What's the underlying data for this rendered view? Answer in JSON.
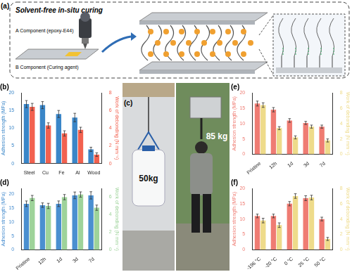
{
  "schematic": {
    "label": "(a)",
    "title": "Solvent-free in-situ curing",
    "components": [
      "A Component (epoxy-E44)",
      "B Component (Curing agent)"
    ]
  },
  "photo": {
    "label": "(c)",
    "loads": [
      "50kg",
      "85 kg"
    ]
  },
  "chart_data": [
    {
      "type": "bar",
      "title": "(b)",
      "categories": [
        "Steel",
        "Cu",
        "Fe",
        "Al",
        "Wood"
      ],
      "ylabel": "Adhesion strength (MPa)",
      "y2label": "Work of debonding (N mm⁻¹)",
      "ylim": [
        0,
        20
      ],
      "yticks": [
        0,
        5,
        10,
        15,
        20
      ],
      "y2lim": [
        0,
        8
      ],
      "y2ticks": [
        0,
        2,
        4,
        6,
        8
      ],
      "grid": false,
      "series": [
        {
          "color": "#3a86c8",
          "values": [
            16.8,
            16.5,
            14.0,
            13.0,
            4.0
          ],
          "errors": [
            1.0,
            1.0,
            1.0,
            1.2,
            0.6
          ]
        },
        {
          "color": "#f2614f",
          "axis": "y2",
          "values": [
            6.4,
            4.3,
            3.4,
            3.8,
            1.0
          ],
          "errors": [
            0.4,
            0.3,
            0.3,
            0.3,
            0.2
          ]
        }
      ]
    },
    {
      "type": "bar",
      "title": "(d)",
      "categories": [
        "Pristine",
        "12h",
        "1d",
        "3d",
        "7d"
      ],
      "ylabel": "Adhesion strength (MPa)",
      "y2label": "Work of debonding (N mm⁻¹)",
      "ylim": [
        0,
        22
      ],
      "yticks": [
        0,
        5,
        10,
        15,
        20
      ],
      "y2lim": [
        0,
        7
      ],
      "y2ticks": [
        0,
        2,
        4,
        6
      ],
      "grid": false,
      "series": [
        {
          "color": "#4a8fd0",
          "values": [
            16.5,
            16.0,
            16.5,
            19.5,
            19.5
          ],
          "errors": [
            1.0,
            0.8,
            1.0,
            1.2,
            1.3
          ]
        },
        {
          "color": "#9ed39a",
          "axis": "y2",
          "values": [
            5.9,
            5.0,
            6.0,
            6.3,
            4.8
          ],
          "errors": [
            0.3,
            0.3,
            0.3,
            0.3,
            0.3
          ]
        }
      ]
    },
    {
      "type": "bar",
      "title": "(e)",
      "categories": [
        "Pristine",
        "12h",
        "1d",
        "3d",
        "7d"
      ],
      "ylabel": "Adhesion strength (MPa)",
      "y2label": "Work of debonding (N mm⁻¹)",
      "ylim": [
        0,
        20
      ],
      "yticks": [
        0,
        5,
        10,
        15,
        20
      ],
      "y2lim": [
        0,
        8
      ],
      "y2ticks": [
        0,
        2,
        4,
        6,
        8
      ],
      "grid": false,
      "series": [
        {
          "color": "#ef7c73",
          "values": [
            16.5,
            14.5,
            11.0,
            10.2,
            9.0
          ],
          "errors": [
            0.8,
            0.7,
            0.6,
            0.5,
            0.5
          ]
        },
        {
          "color": "#eedb8a",
          "axis": "y2",
          "values": [
            6.4,
            3.4,
            2.2,
            3.6,
            1.8
          ],
          "errors": [
            0.3,
            0.2,
            0.2,
            0.2,
            0.2
          ]
        }
      ]
    },
    {
      "type": "bar",
      "title": "(f)",
      "categories": [
        "-196 °C",
        "-20 °C",
        "0 °C",
        "25 °C",
        "50 °C"
      ],
      "ylabel": "Adhesion strength (MPa)",
      "y2label": "Work of debonding (N mm⁻¹)",
      "ylim": [
        0,
        20
      ],
      "yticks": [
        0,
        5,
        10,
        15,
        20
      ],
      "y2lim": [
        0,
        8
      ],
      "y2ticks": [
        0,
        2,
        4,
        6,
        8
      ],
      "grid": false,
      "series": [
        {
          "color": "#ef7c73",
          "values": [
            11.0,
            11.0,
            15.0,
            16.8,
            10.0
          ],
          "errors": [
            0.6,
            0.6,
            0.7,
            0.8,
            0.6
          ]
        },
        {
          "color": "#eedb8a",
          "axis": "y2",
          "values": [
            3.8,
            3.2,
            7.0,
            6.8,
            1.4
          ],
          "errors": [
            0.3,
            0.3,
            0.3,
            0.3,
            0.2
          ]
        }
      ]
    }
  ]
}
